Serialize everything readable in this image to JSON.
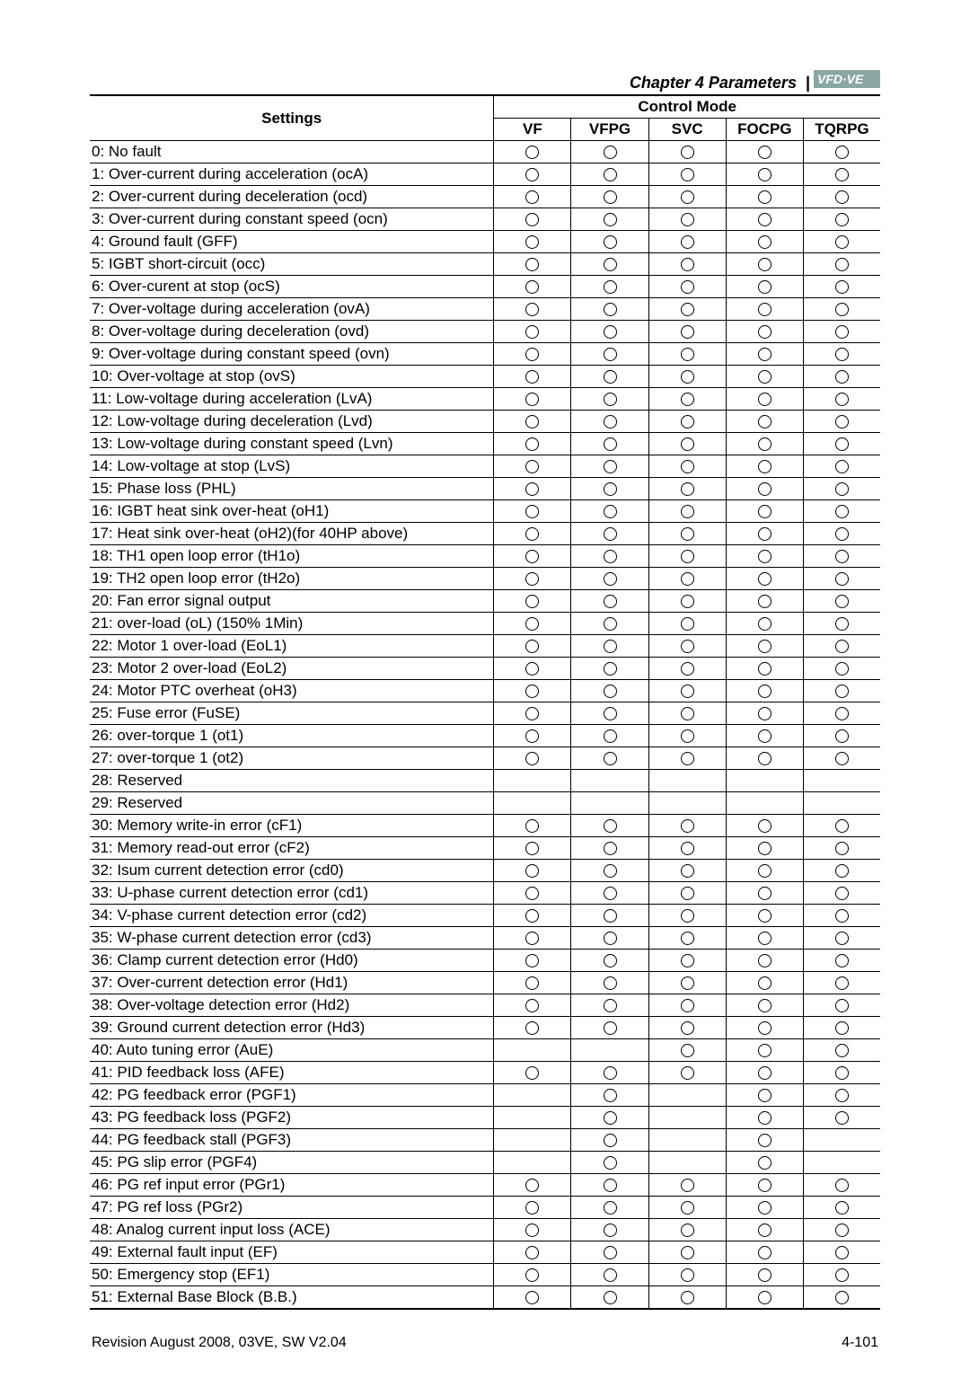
{
  "header": {
    "chapter": "Chapter 4 Parameters",
    "logo_bg": "#8aa7a4",
    "logo_fg": "#ffffff"
  },
  "table": {
    "settings_label": "Settings",
    "control_mode_label": "Control Mode",
    "columns": [
      "VF",
      "VFPG",
      "SVC",
      "FOCPG",
      "TQRPG"
    ],
    "rows": [
      {
        "label": "0: No fault",
        "marks": [
          1,
          1,
          1,
          1,
          1
        ]
      },
      {
        "label": "1: Over-current during acceleration (ocA)",
        "marks": [
          1,
          1,
          1,
          1,
          1
        ]
      },
      {
        "label": "2: Over-current during deceleration (ocd)",
        "marks": [
          1,
          1,
          1,
          1,
          1
        ]
      },
      {
        "label": "3: Over-current during constant speed (ocn)",
        "marks": [
          1,
          1,
          1,
          1,
          1
        ]
      },
      {
        "label": "4: Ground fault (GFF)",
        "marks": [
          1,
          1,
          1,
          1,
          1
        ]
      },
      {
        "label": "5: IGBT short-circuit (occ)",
        "marks": [
          1,
          1,
          1,
          1,
          1
        ]
      },
      {
        "label": "6: Over-curent at stop (ocS)",
        "marks": [
          1,
          1,
          1,
          1,
          1
        ]
      },
      {
        "label": "7: Over-voltage during acceleration (ovA)",
        "marks": [
          1,
          1,
          1,
          1,
          1
        ]
      },
      {
        "label": "8: Over-voltage during deceleration (ovd)",
        "marks": [
          1,
          1,
          1,
          1,
          1
        ]
      },
      {
        "label": "9: Over-voltage during constant speed (ovn)",
        "marks": [
          1,
          1,
          1,
          1,
          1
        ]
      },
      {
        "label": "10: Over-voltage at stop (ovS)",
        "marks": [
          1,
          1,
          1,
          1,
          1
        ]
      },
      {
        "label": "11: Low-voltage during acceleration (LvA)",
        "marks": [
          1,
          1,
          1,
          1,
          1
        ]
      },
      {
        "label": "12: Low-voltage during deceleration (Lvd)",
        "marks": [
          1,
          1,
          1,
          1,
          1
        ]
      },
      {
        "label": "13: Low-voltage during constant speed (Lvn)",
        "marks": [
          1,
          1,
          1,
          1,
          1
        ]
      },
      {
        "label": "14: Low-voltage at stop (LvS)",
        "marks": [
          1,
          1,
          1,
          1,
          1
        ]
      },
      {
        "label": "15: Phase loss (PHL)",
        "marks": [
          1,
          1,
          1,
          1,
          1
        ]
      },
      {
        "label": "16: IGBT heat sink over-heat (oH1)",
        "marks": [
          1,
          1,
          1,
          1,
          1
        ]
      },
      {
        "label": "17: Heat sink over-heat (oH2)(for 40HP above)",
        "marks": [
          1,
          1,
          1,
          1,
          1
        ]
      },
      {
        "label": "18: TH1 open loop error (tH1o)",
        "marks": [
          1,
          1,
          1,
          1,
          1
        ]
      },
      {
        "label": "19: TH2 open loop error (tH2o)",
        "marks": [
          1,
          1,
          1,
          1,
          1
        ]
      },
      {
        "label": "20: Fan error signal output",
        "marks": [
          1,
          1,
          1,
          1,
          1
        ]
      },
      {
        "label": "21: over-load (oL) (150% 1Min)",
        "marks": [
          1,
          1,
          1,
          1,
          1
        ]
      },
      {
        "label": "22: Motor 1 over-load (EoL1)",
        "marks": [
          1,
          1,
          1,
          1,
          1
        ]
      },
      {
        "label": "23: Motor 2 over-load (EoL2)",
        "marks": [
          1,
          1,
          1,
          1,
          1
        ]
      },
      {
        "label": "24: Motor PTC overheat (oH3)",
        "marks": [
          1,
          1,
          1,
          1,
          1
        ]
      },
      {
        "label": "25: Fuse error (FuSE)",
        "marks": [
          1,
          1,
          1,
          1,
          1
        ]
      },
      {
        "label": "26: over-torque 1 (ot1)",
        "marks": [
          1,
          1,
          1,
          1,
          1
        ]
      },
      {
        "label": "27: over-torque 1 (ot2)",
        "marks": [
          1,
          1,
          1,
          1,
          1
        ]
      },
      {
        "label": "28: Reserved",
        "marks": [
          0,
          0,
          0,
          0,
          0
        ]
      },
      {
        "label": "29: Reserved",
        "marks": [
          0,
          0,
          0,
          0,
          0
        ]
      },
      {
        "label": "30: Memory write-in error (cF1)",
        "marks": [
          1,
          1,
          1,
          1,
          1
        ]
      },
      {
        "label": "31: Memory read-out error (cF2)",
        "marks": [
          1,
          1,
          1,
          1,
          1
        ]
      },
      {
        "label": "32: Isum current detection error (cd0)",
        "marks": [
          1,
          1,
          1,
          1,
          1
        ]
      },
      {
        "label": "33: U-phase current detection error (cd1)",
        "marks": [
          1,
          1,
          1,
          1,
          1
        ]
      },
      {
        "label": "34: V-phase current detection error (cd2)",
        "marks": [
          1,
          1,
          1,
          1,
          1
        ]
      },
      {
        "label": "35: W-phase current detection error (cd3)",
        "marks": [
          1,
          1,
          1,
          1,
          1
        ]
      },
      {
        "label": "36: Clamp current detection error (Hd0)",
        "marks": [
          1,
          1,
          1,
          1,
          1
        ]
      },
      {
        "label": "37: Over-current detection error (Hd1)",
        "marks": [
          1,
          1,
          1,
          1,
          1
        ]
      },
      {
        "label": "38: Over-voltage detection error (Hd2)",
        "marks": [
          1,
          1,
          1,
          1,
          1
        ]
      },
      {
        "label": "39: Ground current detection error (Hd3)",
        "marks": [
          1,
          1,
          1,
          1,
          1
        ]
      },
      {
        "label": "40: Auto tuning error (AuE)",
        "marks": [
          0,
          0,
          1,
          1,
          1
        ]
      },
      {
        "label": "41: PID feedback loss (AFE)",
        "marks": [
          1,
          1,
          1,
          1,
          1
        ]
      },
      {
        "label": "42: PG feedback error (PGF1)",
        "marks": [
          0,
          1,
          0,
          1,
          1
        ]
      },
      {
        "label": "43: PG feedback loss (PGF2)",
        "marks": [
          0,
          1,
          0,
          1,
          1
        ]
      },
      {
        "label": "44: PG feedback stall (PGF3)",
        "marks": [
          0,
          1,
          0,
          1,
          0
        ]
      },
      {
        "label": "45: PG slip error (PGF4)",
        "marks": [
          0,
          1,
          0,
          1,
          0
        ]
      },
      {
        "label": "46: PG ref input error (PGr1)",
        "marks": [
          1,
          1,
          1,
          1,
          1
        ]
      },
      {
        "label": "47: PG ref loss (PGr2)",
        "marks": [
          1,
          1,
          1,
          1,
          1
        ]
      },
      {
        "label": "48:  Analog current input loss (ACE)",
        "marks": [
          1,
          1,
          1,
          1,
          1
        ]
      },
      {
        "label": "49: External fault input (EF)",
        "marks": [
          1,
          1,
          1,
          1,
          1
        ]
      },
      {
        "label": "50: Emergency stop (EF1)",
        "marks": [
          1,
          1,
          1,
          1,
          1
        ]
      },
      {
        "label": "51: External Base Block (B.B.)",
        "marks": [
          1,
          1,
          1,
          1,
          1
        ]
      }
    ]
  },
  "footer": {
    "left": "Revision August 2008, 03VE, SW V2.04",
    "right": "4-101"
  }
}
